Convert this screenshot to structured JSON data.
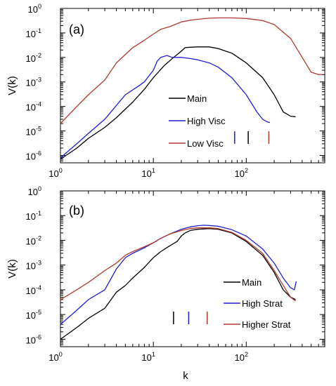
{
  "chart_data": [
    {
      "type": "line",
      "panel_label": "(a)",
      "xlabel": "",
      "ylabel": "V(k)",
      "xscale": "log",
      "yscale": "log",
      "xlim": [
        1,
        700
      ],
      "ylim": [
        5e-07,
        1
      ],
      "x_ticks": [
        {
          "base": "10",
          "exp": "0",
          "value": 1
        },
        {
          "base": "10",
          "exp": "1",
          "value": 10
        },
        {
          "base": "10",
          "exp": "2",
          "value": 100
        }
      ],
      "y_ticks": [
        {
          "base": "10",
          "exp": "-6",
          "value": 1e-06
        },
        {
          "base": "10",
          "exp": "-5",
          "value": 1e-05
        },
        {
          "base": "10",
          "exp": "-4",
          "value": 0.0001
        },
        {
          "base": "10",
          "exp": "-3",
          "value": 0.001
        },
        {
          "base": "10",
          "exp": "-2",
          "value": 0.01
        },
        {
          "base": "10",
          "exp": "-1",
          "value": 0.1
        },
        {
          "base": "10",
          "exp": "0",
          "value": 1
        }
      ],
      "legend_position": "lower-center",
      "series": [
        {
          "name": "Main",
          "color": "#000000",
          "x": [
            1,
            1.5,
            2,
            3,
            4,
            6,
            8,
            10,
            13,
            16,
            20,
            22,
            25,
            30,
            40,
            50,
            70,
            100,
            150,
            200,
            250,
            300,
            340
          ],
          "y": [
            7e-07,
            2e-06,
            5e-06,
            1.4e-05,
            3.5e-05,
            0.00015,
            0.0005,
            0.0015,
            0.0045,
            0.009,
            0.018,
            0.025,
            0.026,
            0.027,
            0.027,
            0.023,
            0.015,
            0.006,
            0.0015,
            0.0003,
            6e-05,
            4e-05,
            3.8e-05
          ]
        },
        {
          "name": "High Visc",
          "color": "#1f1fd0",
          "x": [
            1,
            1.5,
            2,
            3,
            4,
            5,
            7,
            8,
            10,
            11,
            12,
            14,
            16,
            18,
            20,
            25,
            30,
            40,
            50,
            70,
            100,
            130,
            150,
            170,
            180
          ],
          "y": [
            8e-07,
            3e-06,
            8e-06,
            3e-05,
            0.00011,
            0.0003,
            0.0007,
            0.001,
            0.003,
            0.007,
            0.01,
            0.012,
            0.01,
            0.01,
            0.01,
            0.009,
            0.008,
            0.006,
            0.004,
            0.0015,
            0.0003,
            6e-05,
            3e-05,
            2.3e-05,
            2.2e-05
          ]
        },
        {
          "name": "Low Visc",
          "color": "#b03a2e",
          "x": [
            1,
            1.5,
            2,
            3,
            4,
            6,
            8,
            10,
            12,
            15,
            20,
            25,
            30,
            40,
            50,
            70,
            100,
            150,
            200,
            300,
            400,
            500,
            600,
            660
          ],
          "y": [
            2e-05,
            0.0001,
            0.0003,
            0.0012,
            0.006,
            0.025,
            0.05,
            0.09,
            0.14,
            0.18,
            0.28,
            0.33,
            0.36,
            0.4,
            0.41,
            0.41,
            0.39,
            0.32,
            0.22,
            0.06,
            0.01,
            0.0025,
            0.002,
            0.002
          ]
        }
      ],
      "markers": [
        {
          "x": 75,
          "color": "#1f1fd0"
        },
        {
          "x": 105,
          "color": "#000000"
        },
        {
          "x": 175,
          "color": "#b03a2e"
        }
      ]
    },
    {
      "type": "line",
      "panel_label": "(b)",
      "xlabel": "k",
      "ylabel": "V(k)",
      "xscale": "log",
      "yscale": "log",
      "xlim": [
        1,
        700
      ],
      "ylim": [
        5e-07,
        1
      ],
      "x_ticks": [
        {
          "base": "10",
          "exp": "0",
          "value": 1
        },
        {
          "base": "10",
          "exp": "1",
          "value": 10
        },
        {
          "base": "10",
          "exp": "2",
          "value": 100
        }
      ],
      "y_ticks": [
        {
          "base": "10",
          "exp": "-6",
          "value": 1e-06
        },
        {
          "base": "10",
          "exp": "-5",
          "value": 1e-05
        },
        {
          "base": "10",
          "exp": "-4",
          "value": 0.0001
        },
        {
          "base": "10",
          "exp": "-3",
          "value": 0.001
        },
        {
          "base": "10",
          "exp": "-2",
          "value": 0.01
        },
        {
          "base": "10",
          "exp": "-1",
          "value": 0.1
        },
        {
          "base": "10",
          "exp": "0",
          "value": 1
        }
      ],
      "legend_position": "lower-right",
      "series": [
        {
          "name": "Main",
          "color": "#000000",
          "x": [
            1,
            1.5,
            2,
            3,
            4,
            5,
            6,
            8,
            10,
            12,
            15,
            18,
            20,
            22,
            25,
            30,
            40,
            50,
            70,
            100,
            150,
            200,
            250,
            300,
            340
          ],
          "y": [
            1e-06,
            3e-06,
            7e-06,
            1.8e-05,
            8e-05,
            0.00015,
            0.0003,
            0.0008,
            0.002,
            0.0035,
            0.006,
            0.009,
            0.015,
            0.02,
            0.025,
            0.028,
            0.03,
            0.028,
            0.02,
            0.009,
            0.0025,
            0.0005,
            0.0001,
            5e-05,
            4e-05
          ]
        },
        {
          "name": "High Strat",
          "color": "#1f1fd0",
          "x": [
            1,
            1.5,
            2,
            3,
            4,
            5,
            6,
            8,
            10,
            12,
            15,
            20,
            25,
            30,
            35,
            40,
            50,
            70,
            100,
            150,
            200,
            250,
            300,
            330,
            345
          ],
          "y": [
            4e-06,
            1.5e-05,
            4e-05,
            0.0001,
            0.0007,
            0.002,
            0.003,
            0.005,
            0.008,
            0.012,
            0.018,
            0.028,
            0.035,
            0.039,
            0.041,
            0.04,
            0.037,
            0.027,
            0.015,
            0.0045,
            0.0012,
            0.0003,
            0.00012,
            0.0001,
            0.00022
          ]
        },
        {
          "name": "Higher Strat",
          "color": "#b03a2e",
          "x": [
            1,
            1.5,
            2,
            3,
            4,
            5,
            6,
            8,
            10,
            12,
            15,
            20,
            25,
            30,
            40,
            50,
            70,
            100,
            150,
            200,
            250,
            300,
            340
          ],
          "y": [
            4e-05,
            0.0001,
            0.0002,
            0.0006,
            0.0012,
            0.0025,
            0.0035,
            0.0055,
            0.008,
            0.012,
            0.018,
            0.025,
            0.03,
            0.032,
            0.032,
            0.03,
            0.021,
            0.01,
            0.003,
            0.0006,
            0.00015,
            5e-05,
            3.5e-05
          ]
        }
      ],
      "markers": [
        {
          "x": 16.5,
          "color": "#000000"
        },
        {
          "x": 24,
          "color": "#1f1fd0"
        },
        {
          "x": 38,
          "color": "#b03a2e"
        }
      ]
    }
  ]
}
